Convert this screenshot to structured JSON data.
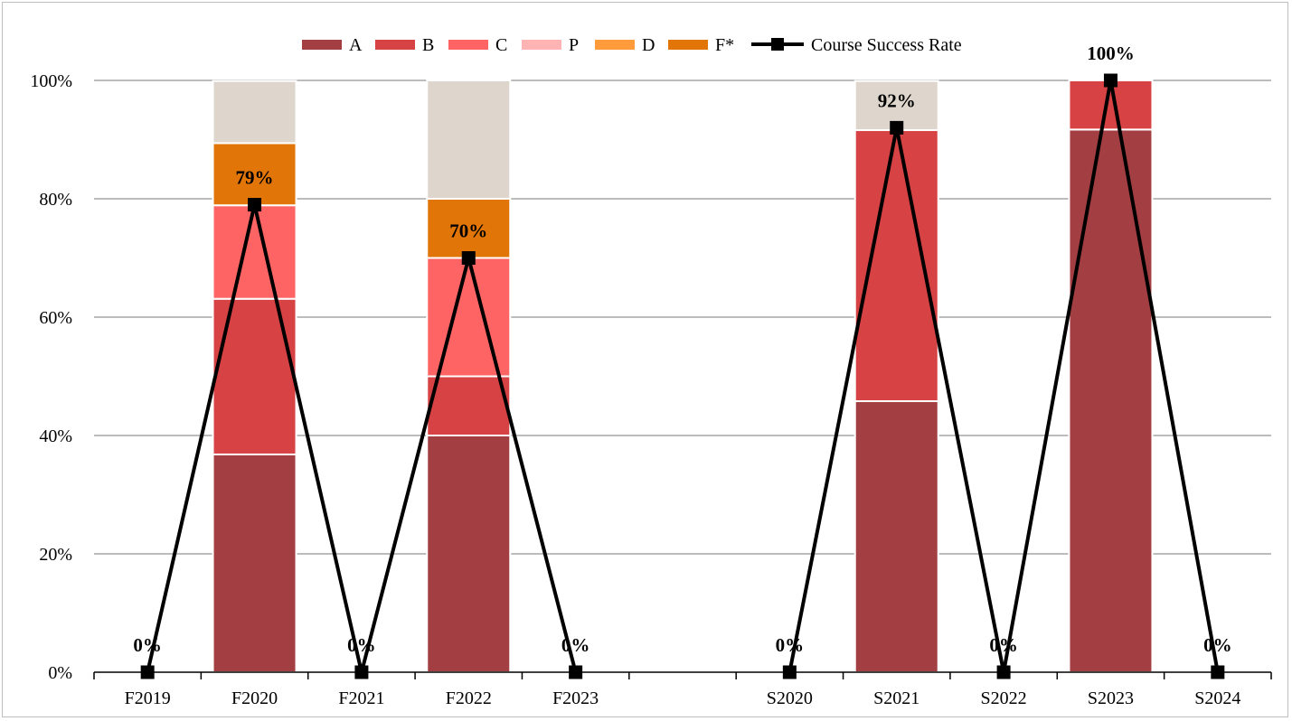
{
  "chart_data": {
    "type": "bar",
    "stacked": true,
    "title": "",
    "xlabel": "",
    "ylabel": "",
    "ylim": [
      0,
      100
    ],
    "y_ticks": [
      "0%",
      "20%",
      "40%",
      "60%",
      "80%",
      "100%"
    ],
    "grid": true,
    "legend_position": "top",
    "categories": [
      "F2019",
      "F2020",
      "F2021",
      "F2022",
      "F2023",
      "",
      "S2020",
      "S2021",
      "S2022",
      "S2023",
      "S2024"
    ],
    "series": [
      {
        "name": "A",
        "color": "#a33f43",
        "values": [
          0,
          36.8,
          0,
          40,
          0,
          0,
          0,
          45.8,
          0,
          91.7,
          0
        ]
      },
      {
        "name": "B",
        "color": "#d74244",
        "values": [
          0,
          26.3,
          0,
          10,
          0,
          0,
          0,
          45.8,
          0,
          8.3,
          0
        ]
      },
      {
        "name": "C",
        "color": "#ff6464",
        "values": [
          0,
          15.8,
          0,
          20,
          0,
          0,
          0,
          0,
          0,
          0,
          0
        ]
      },
      {
        "name": "P",
        "color": "#ffb3b3",
        "values": [
          0,
          0,
          0,
          0,
          0,
          0,
          0,
          0,
          0,
          0,
          0
        ]
      },
      {
        "name": "D",
        "color": "#ff9b3b",
        "values": [
          0,
          0,
          0,
          0,
          0,
          0,
          0,
          0,
          0,
          0,
          0
        ]
      },
      {
        "name": "F*",
        "color": "#e27508",
        "values": [
          0,
          10.5,
          0,
          10,
          0,
          0,
          0,
          0,
          0,
          0,
          0
        ]
      },
      {
        "name": "",
        "color": "#ded6cc",
        "values": [
          0,
          10.5,
          0,
          20,
          0,
          0,
          0,
          8.3,
          0,
          0,
          0
        ]
      }
    ],
    "line_series": {
      "name": "Course Success Rate",
      "color": "#000000",
      "values": [
        0,
        79,
        0,
        70,
        0,
        null,
        0,
        92,
        0,
        100,
        0
      ],
      "labels": [
        "0%",
        "79%",
        "0%",
        "70%",
        "0%",
        "",
        "0%",
        "92%",
        "0%",
        "100%",
        "0%"
      ]
    }
  }
}
